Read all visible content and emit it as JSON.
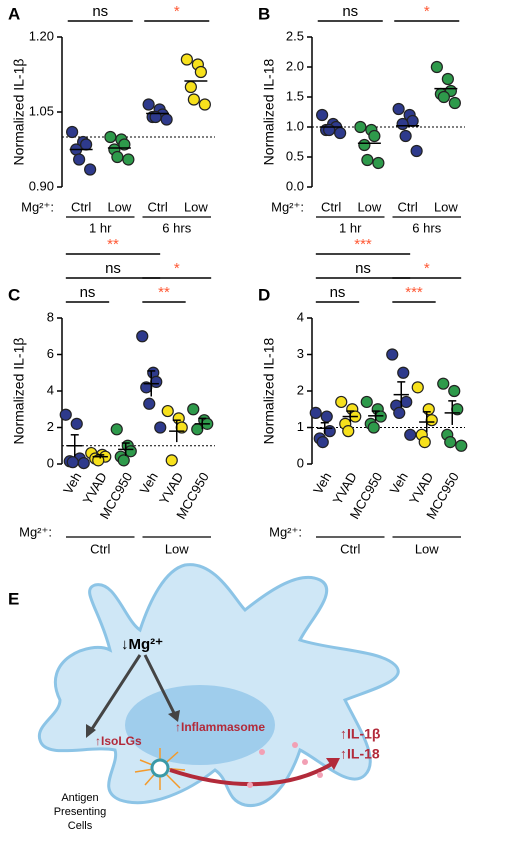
{
  "chart_data": [
    {
      "type": "dotplot",
      "panel": "A",
      "ylabel": "Normalized IL-1β",
      "ylim": [
        0.9,
        1.2
      ],
      "yticks": [
        {
          "value": 0.9,
          "label": "0.90"
        },
        1.05,
        {
          "value": 1.2,
          "label": "1.20"
        }
      ],
      "reference_line": 1.0,
      "group_label": "Mg²⁺:",
      "categories": [
        "Ctrl",
        "Low",
        "Ctrl",
        "Low"
      ],
      "groups": [
        "1 hr",
        "6 hrs"
      ],
      "colors": [
        "#2e3a8c",
        "#2e9a4b",
        "#2e3a8c",
        "#f7e11c"
      ],
      "points": [
        [
          1.01,
          0.99,
          0.985,
          0.975,
          0.955,
          0.935
        ],
        [
          1.0,
          0.995,
          0.985,
          0.975,
          0.96,
          0.955
        ],
        [
          1.065,
          1.055,
          1.045,
          1.04,
          1.04,
          1.035
        ],
        [
          1.155,
          1.145,
          1.13,
          1.1,
          1.075,
          1.065
        ]
      ],
      "means": [
        0.975,
        0.978,
        1.047,
        1.112
      ],
      "significance": [
        {
          "label": "ns",
          "from": 0,
          "to": 1,
          "color": "#000000"
        },
        {
          "label": "*",
          "from": 2,
          "to": 3,
          "color": "#ff5a36"
        }
      ]
    },
    {
      "type": "dotplot",
      "panel": "B",
      "ylabel": "Normalized IL-18",
      "ylim": [
        0,
        2.5
      ],
      "yticks": [
        {
          "value": 0,
          "label": "0.0"
        },
        0.5,
        {
          "value": 1,
          "label": "1.0"
        },
        1.5,
        {
          "value": 2,
          "label": "2.0"
        },
        2.5
      ],
      "reference_line": 1.0,
      "group_label": "Mg²⁺:",
      "categories": [
        "Ctrl",
        "Low",
        "Ctrl",
        "Low"
      ],
      "groups": [
        "1 hr",
        "6 hrs"
      ],
      "colors": [
        "#2e3a8c",
        "#2e9a4b",
        "#2e3a8c",
        "#2e9a4b"
      ],
      "points": [
        [
          1.2,
          1.05,
          1.0,
          0.95,
          0.95,
          0.9
        ],
        [
          1.0,
          0.95,
          0.85,
          0.7,
          0.45,
          0.4
        ],
        [
          1.3,
          1.2,
          1.1,
          1.05,
          0.85,
          0.6
        ],
        [
          2.0,
          1.8,
          1.6,
          1.55,
          1.5,
          1.4
        ]
      ],
      "means": [
        1.0,
        0.73,
        1.02,
        1.64
      ],
      "significance": [
        {
          "label": "ns",
          "from": 0,
          "to": 1,
          "color": "#000000"
        },
        {
          "label": "*",
          "from": 2,
          "to": 3,
          "color": "#ff5a36"
        }
      ]
    },
    {
      "type": "dotplot",
      "panel": "C",
      "ylabel": "Normalized IL-1β",
      "ylim": [
        0,
        8
      ],
      "yticks": [
        0,
        2,
        4,
        6,
        8
      ],
      "reference_line": 1,
      "group_label": "Mg²⁺:",
      "categories": [
        "Veh",
        "YVAD",
        "MCC950",
        "Veh",
        "YVAD",
        "MCC950"
      ],
      "groups": [
        "Ctrl",
        "Low"
      ],
      "colors": [
        "#2e3a8c",
        "#f7e11c",
        "#2e9a4b",
        "#2e3a8c",
        "#f7e11c",
        "#2e9a4b"
      ],
      "points": [
        [
          2.7,
          2.2,
          0.3,
          0.15,
          0.1,
          0.05
        ],
        [
          0.6,
          0.5,
          0.4,
          0.3,
          0.2
        ],
        [
          1.9,
          1.0,
          0.7,
          0.4,
          0.2
        ],
        [
          7.0,
          5.0,
          4.5,
          4.2,
          3.3,
          2.0
        ],
        [
          2.9,
          2.5,
          2.0,
          0.2
        ],
        [
          3.0,
          2.4,
          2.2,
          1.9
        ]
      ],
      "means": [
        1.0,
        0.4,
        0.8,
        4.4,
        1.8,
        2.2
      ],
      "errors": [
        0.6,
        0.1,
        0.35,
        0.7,
        0.6,
        0.3
      ],
      "significance": [
        {
          "label": "ns",
          "from": 0,
          "to": 1,
          "color": "#000000"
        },
        {
          "label": "**",
          "from": 3,
          "to": 4,
          "color": "#ff5a36"
        },
        {
          "label": "ns",
          "from": 0,
          "to": 3,
          "color": "#000000"
        },
        {
          "label": "*",
          "from": 3,
          "to": 5,
          "color": "#ff5a36"
        },
        {
          "label": "**",
          "from": 0,
          "to": 3,
          "color": "#ff5a36"
        }
      ]
    },
    {
      "type": "dotplot",
      "panel": "D",
      "ylabel": "Normalized IL-18",
      "ylim": [
        0,
        4
      ],
      "yticks": [
        0,
        1,
        2,
        3,
        4
      ],
      "reference_line": 1,
      "group_label": "Mg²⁺:",
      "categories": [
        "Veh",
        "YVAD",
        "MCC950",
        "Veh",
        "YVAD",
        "MCC950"
      ],
      "groups": [
        "Ctrl",
        "Low"
      ],
      "colors": [
        "#2e3a8c",
        "#f7e11c",
        "#2e9a4b",
        "#2e3a8c",
        "#f7e11c",
        "#2e9a4b"
      ],
      "points": [
        [
          1.4,
          1.3,
          0.9,
          0.7,
          0.6
        ],
        [
          1.7,
          1.5,
          1.3,
          1.1,
          0.9
        ],
        [
          1.7,
          1.5,
          1.3,
          1.1,
          1.0
        ],
        [
          3.0,
          2.5,
          1.7,
          1.6,
          1.4,
          0.8
        ],
        [
          2.1,
          1.5,
          1.2,
          0.8,
          0.6
        ],
        [
          2.2,
          2.0,
          1.5,
          0.8,
          0.6,
          0.5
        ]
      ],
      "means": [
        0.98,
        1.3,
        1.32,
        1.9,
        1.15,
        1.4
      ],
      "errors": [
        0.15,
        0.15,
        0.13,
        0.35,
        0.28,
        0.33
      ],
      "significance": [
        {
          "label": "ns",
          "from": 0,
          "to": 1,
          "color": "#000000"
        },
        {
          "label": "***",
          "from": 3,
          "to": 4,
          "color": "#ff5a36"
        },
        {
          "label": "ns",
          "from": 0,
          "to": 3,
          "color": "#000000"
        },
        {
          "label": "*",
          "from": 3,
          "to": 5,
          "color": "#ff5a36"
        },
        {
          "label": "***",
          "from": 0,
          "to": 3,
          "color": "#ff5a36"
        }
      ]
    }
  ],
  "diagram": {
    "panel": "E",
    "stimulus": "↓Mg²⁺",
    "isolgs": "↑IsoLGs",
    "inflammasome": "↑Inflammasome",
    "outputs": [
      "↑IL-1β",
      "↑IL-18"
    ],
    "cell_label": [
      "Antigen",
      "Presenting",
      "Cells"
    ]
  }
}
